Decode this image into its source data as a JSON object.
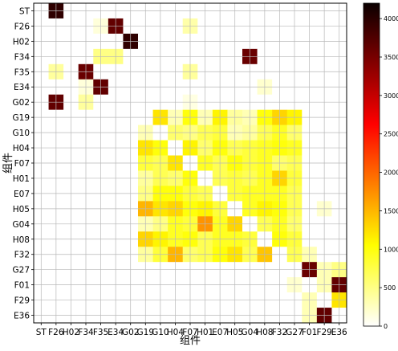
{
  "chart_data": {
    "type": "heatmap",
    "xlabel": "组件",
    "ylabel": "组件",
    "labels": [
      "ST",
      "F26",
      "H02",
      "F34",
      "F35",
      "E34",
      "G02",
      "G19",
      "G10",
      "H04",
      "F07",
      "H01",
      "E07",
      "H05",
      "G04",
      "H08",
      "F32",
      "G27",
      "F01",
      "F29",
      "E36"
    ],
    "grid": true,
    "colormap": "hot_r",
    "value_range": [
      0,
      4200
    ],
    "colorbar_ticks": [
      0,
      500,
      1000,
      1500,
      2000,
      2500,
      3000,
      3500,
      4000
    ],
    "values": [
      [
        0,
        4050,
        0,
        0,
        0,
        0,
        0,
        0,
        0,
        0,
        0,
        0,
        0,
        0,
        0,
        0,
        0,
        0,
        0,
        0,
        0
      ],
      [
        0,
        0,
        0,
        0,
        150,
        3700,
        0,
        0,
        0,
        0,
        350,
        0,
        0,
        0,
        0,
        0,
        0,
        0,
        0,
        0,
        0
      ],
      [
        0,
        0,
        0,
        0,
        0,
        0,
        4050,
        0,
        0,
        0,
        0,
        0,
        0,
        0,
        0,
        0,
        0,
        0,
        0,
        0,
        0
      ],
      [
        0,
        0,
        0,
        0,
        500,
        500,
        0,
        0,
        0,
        0,
        0,
        0,
        0,
        0,
        3650,
        0,
        0,
        0,
        0,
        0,
        0
      ],
      [
        0,
        400,
        0,
        3650,
        0,
        0,
        0,
        0,
        0,
        0,
        400,
        0,
        0,
        0,
        0,
        0,
        0,
        0,
        0,
        0,
        0
      ],
      [
        0,
        0,
        0,
        150,
        3700,
        0,
        0,
        0,
        0,
        0,
        0,
        0,
        0,
        0,
        0,
        200,
        0,
        0,
        0,
        0,
        0
      ],
      [
        0,
        3700,
        0,
        400,
        0,
        0,
        0,
        0,
        0,
        0,
        120,
        0,
        0,
        0,
        0,
        0,
        0,
        0,
        0,
        0,
        0
      ],
      [
        0,
        0,
        0,
        0,
        0,
        0,
        0,
        0,
        1200,
        300,
        1000,
        300,
        1100,
        400,
        300,
        1000,
        1300,
        1100,
        0,
        0,
        0
      ],
      [
        0,
        0,
        0,
        0,
        0,
        0,
        0,
        300,
        0,
        600,
        500,
        700,
        800,
        300,
        400,
        700,
        900,
        600,
        0,
        0,
        0
      ],
      [
        0,
        0,
        0,
        0,
        0,
        0,
        0,
        1200,
        1000,
        0,
        1100,
        600,
        1000,
        700,
        800,
        900,
        1000,
        900,
        0,
        0,
        0
      ],
      [
        0,
        0,
        0,
        0,
        0,
        0,
        0,
        800,
        700,
        1200,
        0,
        900,
        700,
        1000,
        800,
        900,
        600,
        700,
        0,
        0,
        0
      ],
      [
        0,
        0,
        0,
        0,
        0,
        0,
        0,
        400,
        700,
        600,
        1000,
        0,
        700,
        800,
        700,
        900,
        1300,
        800,
        0,
        0,
        0
      ],
      [
        0,
        0,
        0,
        0,
        0,
        0,
        0,
        500,
        1000,
        1000,
        800,
        700,
        0,
        800,
        900,
        900,
        900,
        700,
        0,
        0,
        0
      ],
      [
        0,
        0,
        0,
        0,
        0,
        0,
        0,
        1500,
        1200,
        1300,
        1000,
        1100,
        800,
        0,
        900,
        1100,
        1000,
        700,
        0,
        200,
        0
      ],
      [
        0,
        0,
        0,
        0,
        0,
        0,
        0,
        300,
        500,
        900,
        800,
        1700,
        900,
        1300,
        0,
        700,
        900,
        600,
        0,
        0,
        0
      ],
      [
        0,
        0,
        0,
        0,
        0,
        0,
        0,
        1300,
        1100,
        900,
        1000,
        700,
        900,
        900,
        800,
        0,
        1000,
        800,
        0,
        0,
        0
      ],
      [
        0,
        0,
        0,
        0,
        0,
        0,
        0,
        400,
        800,
        1500,
        600,
        700,
        1000,
        1200,
        700,
        1400,
        0,
        700,
        300,
        0,
        0
      ],
      [
        0,
        0,
        0,
        0,
        0,
        0,
        0,
        0,
        0,
        0,
        0,
        0,
        0,
        0,
        0,
        0,
        0,
        0,
        3650,
        300,
        500
      ],
      [
        0,
        0,
        0,
        0,
        0,
        0,
        0,
        0,
        0,
        0,
        0,
        0,
        0,
        0,
        0,
        0,
        0,
        200,
        0,
        300,
        3700
      ],
      [
        0,
        0,
        0,
        0,
        0,
        0,
        0,
        0,
        0,
        0,
        0,
        0,
        0,
        0,
        0,
        0,
        0,
        0,
        300,
        0,
        1200
      ],
      [
        0,
        0,
        0,
        0,
        0,
        0,
        0,
        0,
        0,
        0,
        0,
        0,
        0,
        0,
        0,
        0,
        0,
        0,
        300,
        3700,
        0
      ]
    ]
  }
}
